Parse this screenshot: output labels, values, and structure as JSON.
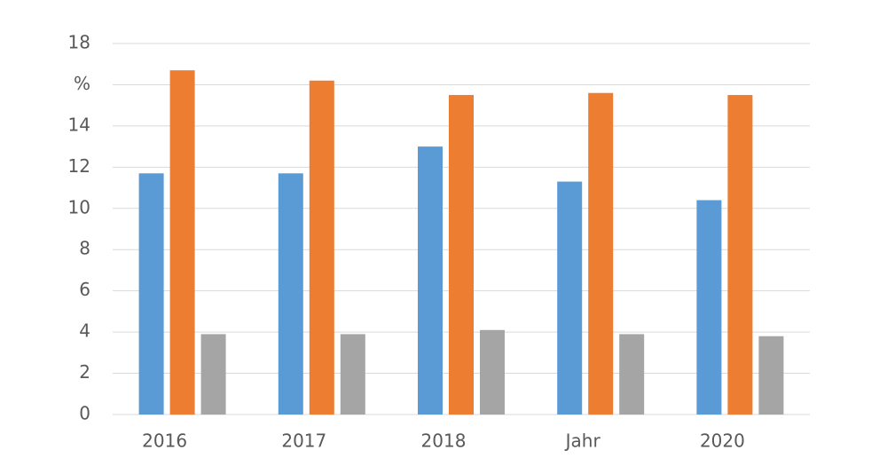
{
  "chart_data": {
    "type": "bar",
    "categories": [
      "2016",
      "2017",
      "2018",
      "Jahr",
      "2020"
    ],
    "series": [
      {
        "color": "#5b9bd5",
        "values": [
          11.7,
          11.7,
          13.0,
          11.3,
          10.4
        ]
      },
      {
        "color": "#ed7d31",
        "values": [
          16.7,
          16.2,
          15.5,
          15.6,
          15.5
        ]
      },
      {
        "color": "#a5a5a5",
        "values": [
          3.9,
          3.9,
          4.1,
          3.9,
          3.8
        ]
      }
    ],
    "ylim": [
      0,
      18
    ],
    "yticks": [
      0,
      2,
      4,
      6,
      8,
      10,
      12,
      14,
      {
        "value": 16,
        "label": "%"
      },
      18
    ],
    "grid": true
  }
}
